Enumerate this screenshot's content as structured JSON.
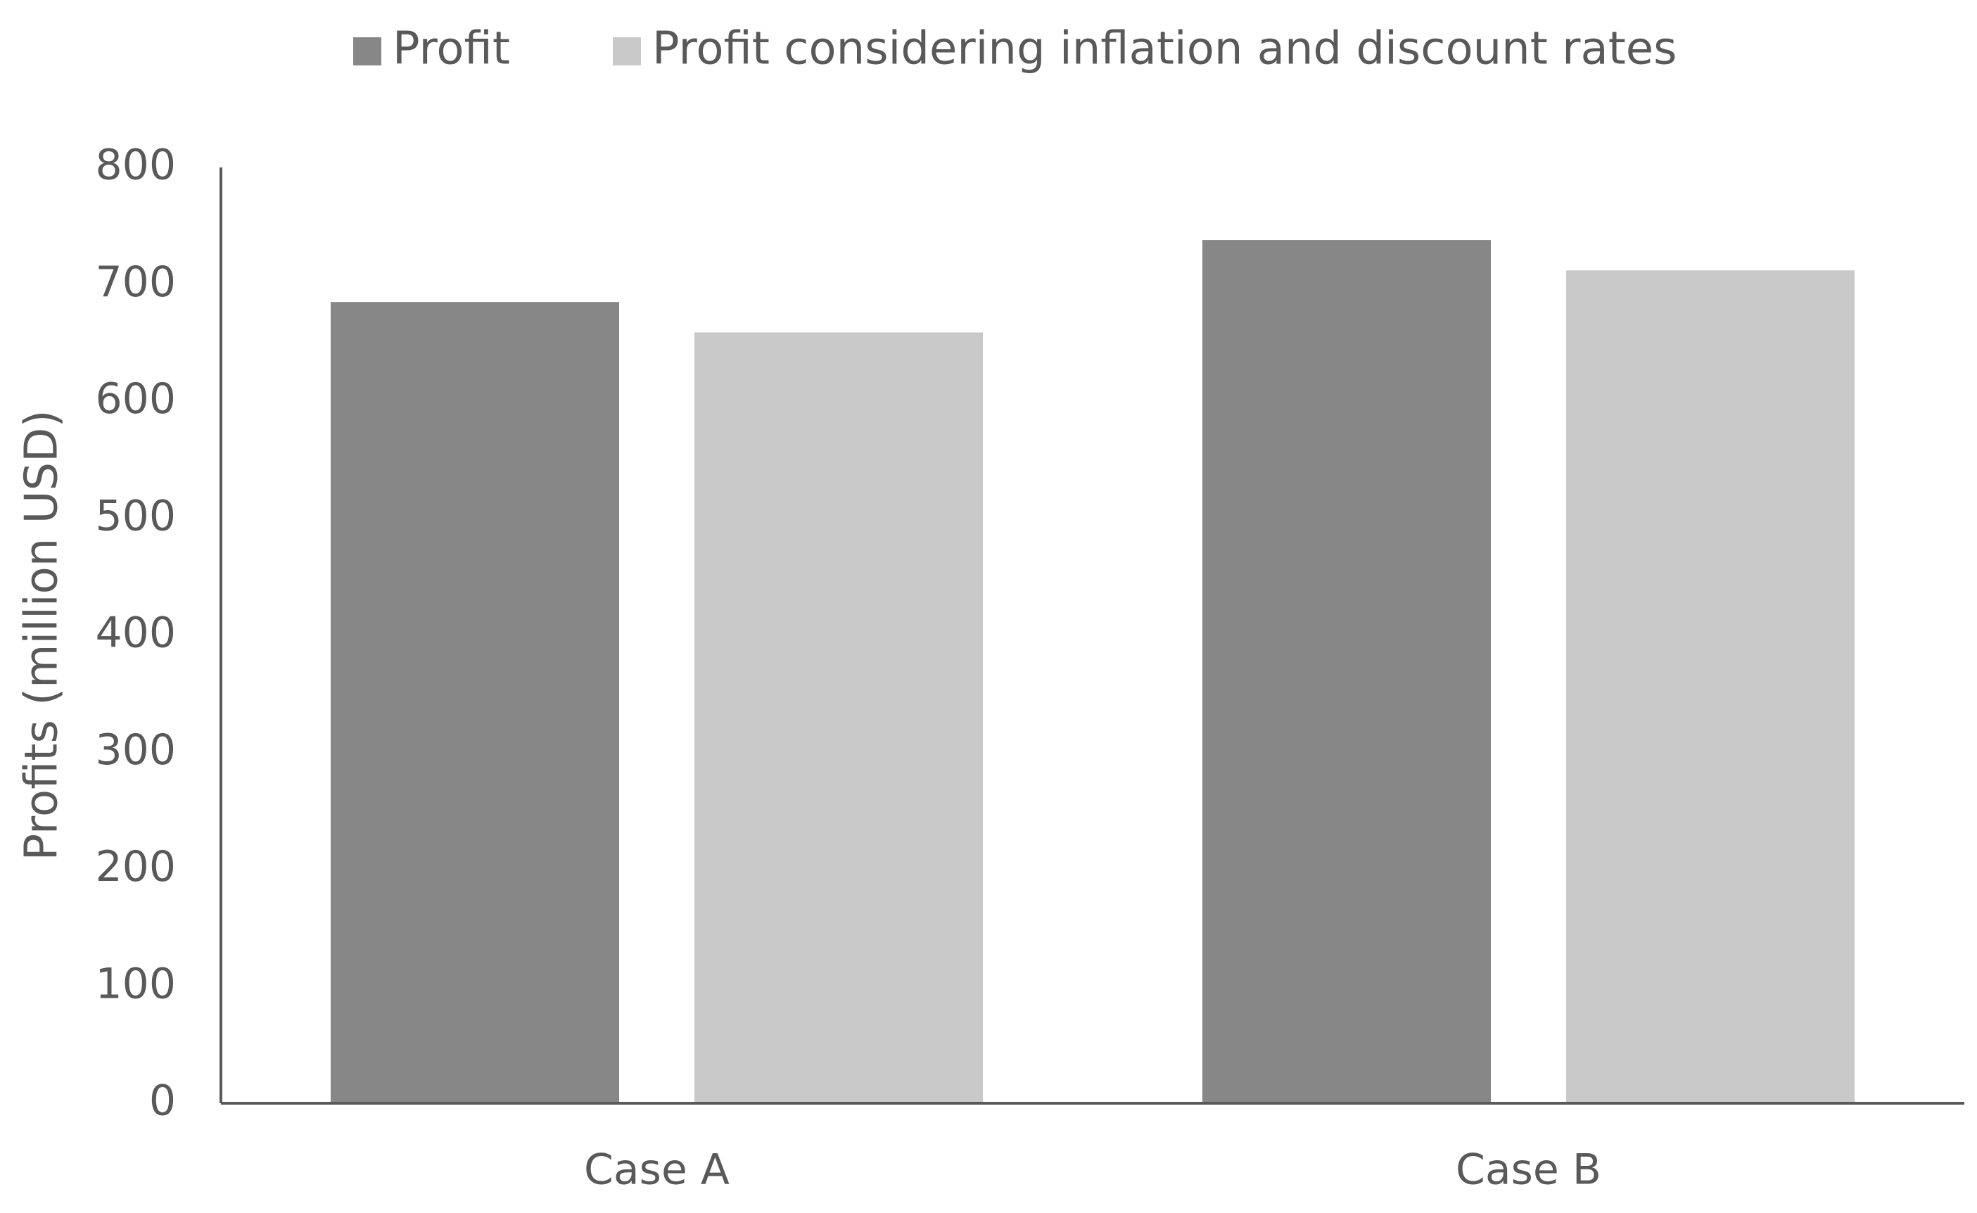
{
  "chart_data": {
    "type": "bar",
    "y_label": "Profits (million USD)",
    "categories": [
      "Case A",
      "Case B"
    ],
    "series": [
      {
        "name": "Profit",
        "color": "#878787",
        "values": [
          685,
          738
        ]
      },
      {
        "name": "Profit considering inflation and discount rates",
        "color": "#c9c9c9",
        "values": [
          659,
          712
        ]
      }
    ],
    "ylim": [
      0,
      800
    ],
    "yticks": [
      0,
      100,
      200,
      300,
      400,
      500,
      600,
      700,
      800
    ],
    "grid": false,
    "legend": "top"
  }
}
